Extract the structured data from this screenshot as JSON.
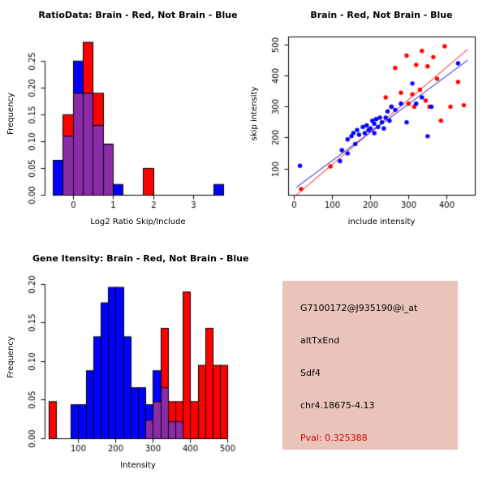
{
  "colors": {
    "red": "#FF0000",
    "blue": "#0000FF",
    "overlap": "#8A2BA8",
    "axis": "#000000",
    "pval_red": "#CC0000",
    "info_bg": "#E9C4BA"
  },
  "chart_data": [
    {
      "id": "ratio-histogram",
      "type": "histogram",
      "title": "RatioData: Brain - Red, Not Brain - Blue",
      "xlabel": "Log2 Ratio Skip/Include",
      "ylabel": "Frequency",
      "bin_start": -0.5,
      "bin_width": 0.25,
      "series": [
        {
          "name": "Not Brain",
          "color": "#0000FF",
          "values": [
            0.065,
            0.11,
            0.25,
            0.19,
            0.13,
            0.095,
            0.02,
            0,
            0,
            0,
            0,
            0,
            0,
            0,
            0,
            0,
            0.02
          ]
        },
        {
          "name": "Brain",
          "color": "#FF0000",
          "values": [
            0,
            0.15,
            0.19,
            0.285,
            0.19,
            0.095,
            0,
            0,
            0,
            0.05,
            0,
            0,
            0,
            0,
            0,
            0,
            0
          ]
        }
      ],
      "xlim": [
        -0.7,
        3.95
      ],
      "ylim": [
        0,
        0.295
      ],
      "xticks": [
        0,
        1,
        2,
        3
      ],
      "xtick_labels": [
        "0",
        "1",
        "2",
        "3"
      ],
      "yticks": [
        0,
        0.05,
        0.1,
        0.15,
        0.2,
        0.25
      ],
      "ytick_labels": [
        "0.00",
        "0.05",
        "0.10",
        "0.15",
        "0.20",
        "0.25"
      ],
      "grid": false,
      "legend": "none"
    },
    {
      "id": "intensity-scatter",
      "type": "scatter",
      "title": "Brain - Red, Not Brain - Blue",
      "xlabel": "include intensity",
      "ylabel": "skip intensity",
      "series": [
        {
          "name": "Brain",
          "color": "#FF0000",
          "points": [
            [
              18,
              35
            ],
            [
              95,
              108
            ],
            [
              240,
              330
            ],
            [
              255,
              300
            ],
            [
              265,
              425
            ],
            [
              280,
              345
            ],
            [
              295,
              465
            ],
            [
              300,
              310
            ],
            [
              310,
              340
            ],
            [
              315,
              300
            ],
            [
              320,
              435
            ],
            [
              330,
              355
            ],
            [
              335,
              480
            ],
            [
              345,
              320
            ],
            [
              350,
              430
            ],
            [
              355,
              300
            ],
            [
              365,
              460
            ],
            [
              375,
              390
            ],
            [
              385,
              255
            ],
            [
              395,
              495
            ],
            [
              410,
              300
            ],
            [
              430,
              380
            ],
            [
              445,
              305
            ]
          ]
        },
        {
          "name": "Not Brain",
          "color": "#0000FF",
          "points": [
            [
              15,
              110
            ],
            [
              120,
              125
            ],
            [
              125,
              160
            ],
            [
              140,
              150
            ],
            [
              140,
              195
            ],
            [
              150,
              205
            ],
            [
              155,
              215
            ],
            [
              160,
              180
            ],
            [
              165,
              225
            ],
            [
              170,
              210
            ],
            [
              180,
              235
            ],
            [
              185,
              215
            ],
            [
              190,
              240
            ],
            [
              195,
              225
            ],
            [
              200,
              230
            ],
            [
              205,
              255
            ],
            [
              210,
              215
            ],
            [
              210,
              245
            ],
            [
              215,
              260
            ],
            [
              220,
              235
            ],
            [
              225,
              265
            ],
            [
              230,
              250
            ],
            [
              235,
              230
            ],
            [
              240,
              265
            ],
            [
              245,
              285
            ],
            [
              250,
              255
            ],
            [
              255,
              300
            ],
            [
              265,
              290
            ],
            [
              280,
              310
            ],
            [
              295,
              250
            ],
            [
              310,
              375
            ],
            [
              320,
              310
            ],
            [
              335,
              330
            ],
            [
              350,
              205
            ],
            [
              360,
              300
            ],
            [
              430,
              440
            ]
          ]
        }
      ],
      "lines": [
        {
          "name": "brain-fit-line",
          "color": "#FF0000",
          "from": [
            5,
            15
          ],
          "to": [
            455,
            485
          ]
        },
        {
          "name": "notbrain-fit-line",
          "color": "#0000CD",
          "from": [
            5,
            40
          ],
          "to": [
            455,
            450
          ]
        }
      ],
      "xlim": [
        -15,
        475
      ],
      "ylim": [
        15,
        525
      ],
      "xticks": [
        0,
        100,
        200,
        300,
        400
      ],
      "xtick_labels": [
        "0",
        "100",
        "200",
        "300",
        "400"
      ],
      "yticks": [
        100,
        200,
        300,
        400,
        500
      ],
      "ytick_labels": [
        "100",
        "200",
        "300",
        "400",
        "500"
      ],
      "grid": false,
      "legend": "none",
      "box": true
    },
    {
      "id": "gene-intensity-histogram",
      "type": "histogram",
      "title": "Gene Itensity: Brain - Red, Not Brain - Blue",
      "xlabel": "Intensity",
      "ylabel": "Frequency",
      "bin_start": 20,
      "bin_width": 20,
      "series": [
        {
          "name": "Not Brain",
          "color": "#0000FF",
          "values": [
            0,
            0,
            0,
            0.044,
            0.044,
            0.088,
            0.132,
            0.176,
            0.196,
            0.196,
            0.132,
            0.066,
            0.066,
            0.044,
            0.088,
            0.066,
            0.022,
            0.022,
            0,
            0,
            0,
            0,
            0,
            0
          ]
        },
        {
          "name": "Brain",
          "color": "#FF0000",
          "values": [
            0.048,
            0,
            0,
            0,
            0,
            0,
            0,
            0,
            0,
            0,
            0,
            0,
            0,
            0.024,
            0.048,
            0.143,
            0.048,
            0.048,
            0.19,
            0.048,
            0.095,
            0.143,
            0.095,
            0.095
          ]
        }
      ],
      "xlim": [
        10,
        510
      ],
      "ylim": [
        0,
        0.205
      ],
      "xticks": [
        100,
        200,
        300,
        400,
        500
      ],
      "xtick_labels": [
        "100",
        "200",
        "300",
        "400",
        "500"
      ],
      "yticks": [
        0,
        0.05,
        0.1,
        0.15,
        0.2
      ],
      "ytick_labels": [
        "0.00",
        "0.05",
        "0.10",
        "0.15",
        "0.20"
      ],
      "grid": false,
      "legend": "none"
    }
  ],
  "info_box": {
    "bg": "#E9C4BA",
    "lines": [
      {
        "id": "probe-id",
        "text": "G7100172@J935190@i_at",
        "color": "#000000"
      },
      {
        "id": "event-type",
        "text": "altTxEnd",
        "color": "#000000"
      },
      {
        "id": "gene-symbol",
        "text": "Sdf4",
        "color": "#000000"
      },
      {
        "id": "locus",
        "text": "chr4.18675-4.13",
        "color": "#000000"
      },
      {
        "id": "pval",
        "text": "Pval: 0.325388",
        "color": "#CC0000"
      }
    ]
  }
}
